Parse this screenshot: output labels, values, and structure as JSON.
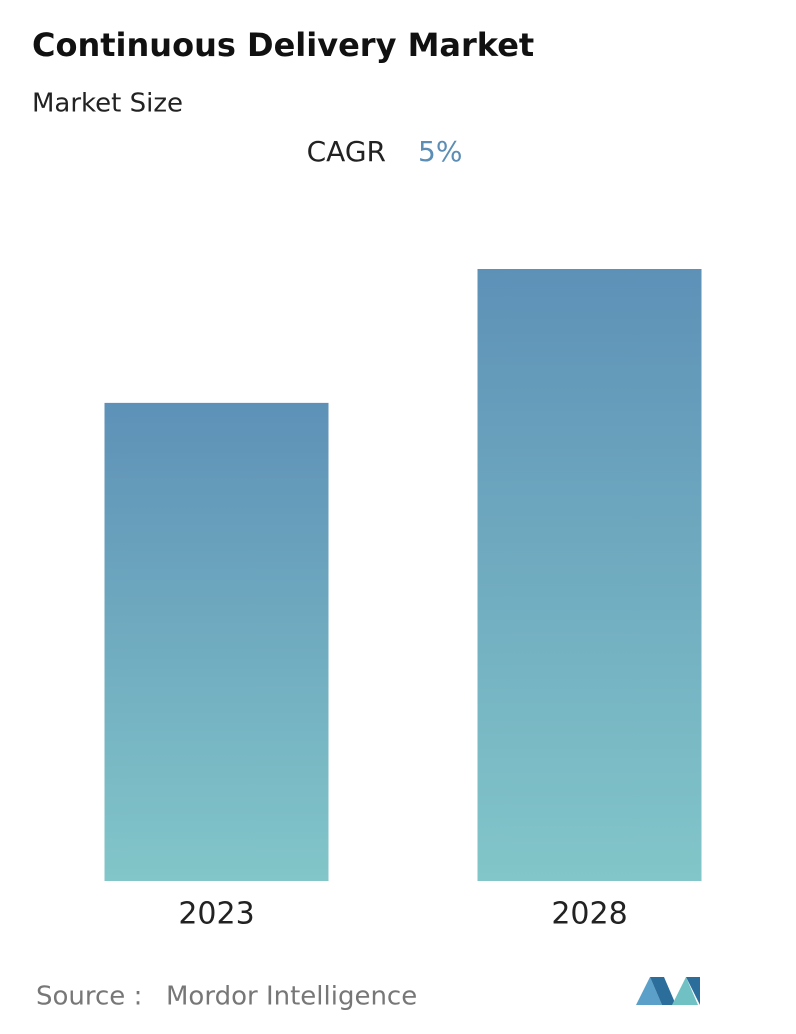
{
  "chart_data": {
    "type": "bar",
    "title": "Continuous Delivery Market",
    "subtitle": "Market Size",
    "cagr_label": "CAGR",
    "cagr_value": "5%",
    "categories": [
      "2023",
      "2028"
    ],
    "values": [
      100,
      128
    ],
    "color_top": "#5e91b7",
    "color_bottom": "#82c6c9",
    "source_label": "Source :",
    "source": "Mordor Intelligence"
  }
}
